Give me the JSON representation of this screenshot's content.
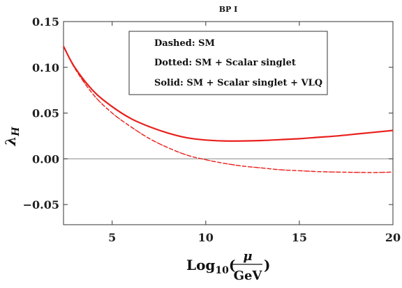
{
  "chart_data": {
    "type": "line",
    "title": "BP I",
    "xlabel": {
      "prefix": "Log",
      "sub": "10",
      "open": "(",
      "num": "μ",
      "den": "GeV",
      "close": ")"
    },
    "ylabel": {
      "main": "λ",
      "sub": "H"
    },
    "xlim": [
      2.4,
      20
    ],
    "ylim": [
      -0.072,
      0.15
    ],
    "xticks": [
      5,
      10,
      15,
      20
    ],
    "xtick_labels": [
      "5",
      "10",
      "15",
      "20"
    ],
    "yticks": [
      0.15,
      0.1,
      0.05,
      0.0,
      -0.05
    ],
    "ytick_labels": [
      "0.15",
      "0.10",
      "0.05",
      "0.00",
      "−0.05"
    ],
    "grid": false,
    "zero_line": true,
    "legend": {
      "placement": "top-center",
      "entries": [
        {
          "label": "Dashed:",
          "value": "SM"
        },
        {
          "label": "Dotted:",
          "value": "SM + Scalar singlet"
        },
        {
          "label": "Solid:",
          "value": "SM + Scalar singlet + VLQ"
        }
      ]
    },
    "colors": {
      "curves": "#e8201c",
      "zero_line": "#888888",
      "frame": "#333333"
    },
    "series": [
      {
        "style": "dashed",
        "x": [
          2.4,
          3,
          4,
          5,
          6,
          7,
          8,
          9,
          10,
          11,
          12,
          13,
          14,
          15,
          16,
          17,
          18,
          19,
          20
        ],
        "y": [
          0.123,
          0.099,
          0.07,
          0.05,
          0.035,
          0.022,
          0.012,
          0.004,
          -0.001,
          -0.005,
          -0.008,
          -0.01,
          -0.012,
          -0.013,
          -0.014,
          -0.0145,
          -0.0148,
          -0.015,
          -0.0145
        ]
      },
      {
        "style": "dotted",
        "x": [
          2.4,
          3,
          4,
          5,
          6,
          7,
          8,
          9,
          10,
          11,
          12,
          13,
          14,
          15,
          16,
          17,
          18,
          19,
          20
        ],
        "y": [
          0.123,
          0.099,
          0.07,
          0.05,
          0.035,
          0.022,
          0.012,
          0.004,
          -0.001,
          -0.005,
          -0.008,
          -0.01,
          -0.012,
          -0.013,
          -0.014,
          -0.0145,
          -0.0148,
          -0.015,
          -0.0145
        ]
      },
      {
        "style": "solid",
        "x": [
          2.4,
          3,
          4,
          5,
          6,
          7,
          8,
          9,
          10,
          11,
          12,
          13,
          14,
          15,
          16,
          17,
          18,
          19,
          20
        ],
        "y": [
          0.123,
          0.1,
          0.074,
          0.057,
          0.044,
          0.035,
          0.028,
          0.023,
          0.0205,
          0.0195,
          0.0195,
          0.02,
          0.021,
          0.022,
          0.0235,
          0.025,
          0.027,
          0.029,
          0.031
        ]
      }
    ]
  }
}
